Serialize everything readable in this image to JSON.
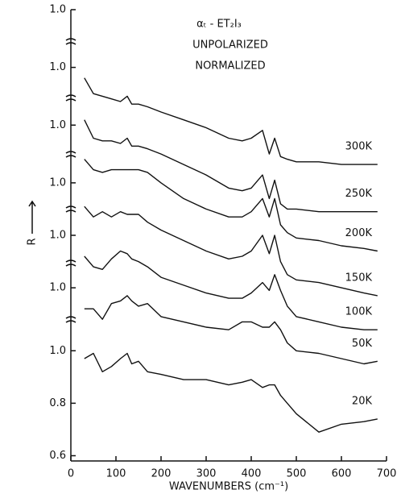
{
  "chart_data": {
    "type": "line",
    "annotations": [
      "αₜ - ET₂I₃",
      "UNPOLARIZED",
      "NORMALIZED"
    ],
    "xlabel": "WAVENUMBERS (cm⁻¹)",
    "ylabel": "R",
    "x": [
      30,
      50,
      70,
      90,
      110,
      125,
      135,
      150,
      170,
      200,
      250,
      300,
      350,
      380,
      400,
      425,
      440,
      452,
      465,
      480,
      500,
      550,
      600,
      650,
      680
    ],
    "series": [
      {
        "name": "300K",
        "color": "#111111",
        "values": [
          2.04,
          1.98,
          1.97,
          1.96,
          1.95,
          1.97,
          1.94,
          1.94,
          1.93,
          1.91,
          1.88,
          1.85,
          1.81,
          1.8,
          1.81,
          1.84,
          1.75,
          1.81,
          1.74,
          1.73,
          1.72,
          1.72,
          1.71,
          1.71,
          1.71
        ]
      },
      {
        "name": "250K",
        "color": "#111111",
        "values": [
          1.88,
          1.81,
          1.8,
          1.8,
          1.79,
          1.81,
          1.78,
          1.78,
          1.77,
          1.75,
          1.71,
          1.67,
          1.62,
          1.61,
          1.62,
          1.67,
          1.58,
          1.65,
          1.56,
          1.54,
          1.54,
          1.53,
          1.53,
          1.53,
          1.53
        ]
      },
      {
        "name": "200K",
        "color": "#111111",
        "values": [
          1.73,
          1.69,
          1.68,
          1.69,
          1.69,
          1.69,
          1.69,
          1.69,
          1.68,
          1.64,
          1.58,
          1.54,
          1.51,
          1.51,
          1.53,
          1.58,
          1.51,
          1.58,
          1.48,
          1.45,
          1.43,
          1.42,
          1.4,
          1.39,
          1.38
        ]
      },
      {
        "name": "150K",
        "color": "#111111",
        "values": [
          1.55,
          1.51,
          1.53,
          1.51,
          1.53,
          1.52,
          1.52,
          1.52,
          1.49,
          1.46,
          1.42,
          1.38,
          1.35,
          1.36,
          1.38,
          1.44,
          1.37,
          1.44,
          1.34,
          1.29,
          1.27,
          1.26,
          1.24,
          1.22,
          1.21
        ]
      },
      {
        "name": "100K",
        "color": "#111111",
        "values": [
          1.36,
          1.32,
          1.31,
          1.35,
          1.38,
          1.37,
          1.35,
          1.34,
          1.32,
          1.28,
          1.25,
          1.22,
          1.2,
          1.2,
          1.22,
          1.26,
          1.23,
          1.29,
          1.23,
          1.17,
          1.13,
          1.11,
          1.09,
          1.08,
          1.08
        ]
      },
      {
        "name": "50K",
        "color": "#111111",
        "values": [
          1.16,
          1.16,
          1.12,
          1.18,
          1.19,
          1.21,
          1.19,
          1.17,
          1.18,
          1.13,
          1.11,
          1.09,
          1.08,
          1.11,
          1.11,
          1.09,
          1.09,
          1.11,
          1.08,
          1.03,
          1.0,
          0.99,
          0.97,
          0.95,
          0.96
        ]
      },
      {
        "name": "20K",
        "color": "#111111",
        "values": [
          0.97,
          0.99,
          0.92,
          0.94,
          0.97,
          0.99,
          0.95,
          0.96,
          0.92,
          0.91,
          0.89,
          0.89,
          0.87,
          0.88,
          0.89,
          0.86,
          0.87,
          0.87,
          0.83,
          0.8,
          0.76,
          0.69,
          0.72,
          0.73,
          0.74
        ]
      }
    ],
    "xlim": [
      0,
      700
    ],
    "xticks": [
      0,
      100,
      200,
      300,
      400,
      500,
      600,
      700
    ],
    "ylim": [
      0.58,
      2.3
    ],
    "yticks": [
      {
        "value": 2.3,
        "label": "1.0"
      },
      {
        "value": 2.08,
        "label": "1.0"
      },
      {
        "value": 1.86,
        "label": "1.0"
      },
      {
        "value": 1.64,
        "label": "1.0"
      },
      {
        "value": 1.44,
        "label": "1.0"
      },
      {
        "value": 1.24,
        "label": "1.0"
      },
      {
        "value": 1.0,
        "label": "1.0"
      },
      0.8,
      0.6
    ],
    "grid": false
  }
}
